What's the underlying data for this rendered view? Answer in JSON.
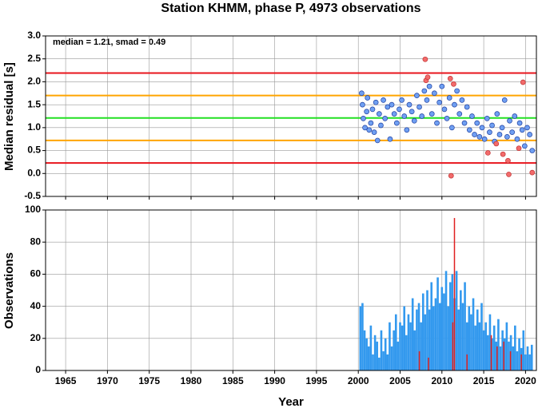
{
  "chart_data": [
    {
      "type": "scatter",
      "title": "Station KHMM, phase P, 4973 observations",
      "ylabel": "Median residual [s]",
      "annotation": "median = 1.21, smad = 0.49",
      "xlim": [
        1962.6,
        2021.3
      ],
      "xticks": [
        1965,
        1970,
        1975,
        1980,
        1985,
        1990,
        1995,
        2000,
        2005,
        2010,
        2015,
        2020
      ],
      "ylim": [
        -0.5,
        3.0
      ],
      "yticks": [
        {
          "value": -0.5,
          "label": "-0.5"
        },
        {
          "value": 0,
          "label": "0.0"
        },
        {
          "value": 0.5,
          "label": "0.5"
        },
        {
          "value": 1,
          "label": "1.0"
        },
        {
          "value": 1.5,
          "label": "1.5"
        },
        {
          "value": 2,
          "label": "2.0"
        },
        {
          "value": 2.5,
          "label": "2.5"
        },
        {
          "value": 3,
          "label": "3.0"
        }
      ],
      "grid": true,
      "lines": [
        {
          "value": 2.19,
          "color": "#e8141c"
        },
        {
          "value": 1.7,
          "color": "#ffa500"
        },
        {
          "value": 1.21,
          "color": "#22e022"
        },
        {
          "value": 0.72,
          "color": "#ffa500"
        },
        {
          "value": 0.23,
          "color": "#e8141c"
        }
      ],
      "series": [
        {
          "color": "#6f9ff2",
          "x": [
            2000.4,
            2000.5,
            2000.6,
            2000.8,
            2001.0,
            2001.1,
            2001.3,
            2001.5,
            2001.7,
            2001.9,
            2002.1,
            2002.3,
            2002.5,
            2002.7,
            2003.0,
            2003.2,
            2003.5,
            2003.8,
            2004.0,
            2004.3,
            2004.6,
            2004.9,
            2005.2,
            2005.5,
            2005.8,
            2006.1,
            2006.4,
            2006.7,
            2007.0,
            2007.3,
            2007.6,
            2007.9,
            2008.2,
            2008.5,
            2008.8,
            2009.1,
            2009.4,
            2009.7,
            2010.0,
            2010.3,
            2010.6,
            2010.9,
            2011.2,
            2011.5,
            2011.8,
            2012.1,
            2012.4,
            2012.7,
            2013.0,
            2013.3,
            2013.6,
            2013.9,
            2014.2,
            2014.5,
            2014.8,
            2015.1,
            2015.4,
            2015.7,
            2016.0,
            2016.3,
            2016.6,
            2016.9,
            2017.2,
            2017.5,
            2017.8,
            2018.1,
            2018.4,
            2018.7,
            2019.0,
            2019.3,
            2019.6,
            2019.9,
            2020.2,
            2020.5,
            2020.8
          ],
          "values": [
            1.75,
            1.5,
            1.2,
            1.0,
            1.35,
            1.65,
            0.95,
            1.1,
            1.4,
            0.9,
            1.55,
            0.72,
            1.3,
            1.05,
            1.6,
            1.2,
            1.45,
            0.75,
            1.5,
            1.3,
            1.1,
            1.4,
            1.6,
            1.25,
            0.95,
            1.5,
            1.35,
            1.15,
            1.7,
            1.45,
            1.25,
            1.8,
            1.6,
            1.9,
            1.3,
            1.75,
            1.1,
            1.55,
            1.9,
            1.4,
            1.2,
            1.65,
            1.0,
            1.5,
            1.8,
            1.3,
            1.6,
            1.1,
            1.45,
            0.95,
            1.25,
            0.85,
            1.1,
            0.8,
            1.0,
            0.75,
            1.2,
            0.9,
            1.05,
            0.7,
            1.3,
            0.85,
            1.0,
            1.6,
            0.8,
            1.15,
            0.9,
            1.25,
            0.75,
            1.1,
            0.95,
            0.6,
            1.0,
            0.85,
            0.5
          ]
        },
        {
          "color": "#f26b6b",
          "x": [
            2008.0,
            2008.1,
            2008.3,
            2011.0,
            2011.1,
            2011.4,
            2015.5,
            2016.5,
            2017.3,
            2017.9,
            2018.0,
            2019.2,
            2019.7,
            2020.8
          ],
          "values": [
            2.49,
            2.03,
            2.1,
            2.07,
            -0.05,
            1.95,
            0.45,
            0.65,
            0.42,
            0.28,
            -0.02,
            0.55,
            1.99,
            0.02
          ]
        }
      ]
    },
    {
      "type": "bar",
      "ylabel": "Observations",
      "xlabel": "Year",
      "xlim": [
        1962.6,
        2021.3
      ],
      "xticks": [
        1965,
        1970,
        1975,
        1980,
        1985,
        1990,
        1995,
        2000,
        2005,
        2010,
        2015,
        2020
      ],
      "ylim": [
        0,
        100
      ],
      "yticks": [
        0,
        20,
        40,
        60,
        80,
        100
      ],
      "grid": true,
      "series": [
        {
          "color": "#3399ee",
          "x": [
            2000.25,
            2000.5,
            2000.75,
            2001,
            2001.25,
            2001.5,
            2001.75,
            2002,
            2002.25,
            2002.5,
            2002.75,
            2003,
            2003.25,
            2003.5,
            2003.75,
            2004,
            2004.25,
            2004.5,
            2004.75,
            2005,
            2005.25,
            2005.5,
            2005.75,
            2006,
            2006.25,
            2006.5,
            2006.75,
            2007,
            2007.25,
            2007.5,
            2007.75,
            2008,
            2008.25,
            2008.5,
            2008.75,
            2009,
            2009.25,
            2009.5,
            2009.75,
            2010,
            2010.25,
            2010.5,
            2010.75,
            2011,
            2011.25,
            2011.5,
            2011.75,
            2012,
            2012.25,
            2012.5,
            2012.75,
            2013,
            2013.25,
            2013.5,
            2013.75,
            2014,
            2014.25,
            2014.5,
            2014.75,
            2015,
            2015.25,
            2015.5,
            2015.75,
            2016,
            2016.25,
            2016.5,
            2016.75,
            2017,
            2017.25,
            2017.5,
            2017.75,
            2018,
            2018.25,
            2018.5,
            2018.75,
            2019,
            2019.25,
            2019.5,
            2019.75,
            2020,
            2020.25,
            2020.5,
            2020.75
          ],
          "values": [
            40,
            42,
            25,
            20,
            15,
            28,
            10,
            22,
            18,
            8,
            25,
            12,
            20,
            10,
            30,
            15,
            25,
            35,
            18,
            30,
            28,
            40,
            22,
            35,
            30,
            45,
            25,
            38,
            42,
            30,
            48,
            35,
            50,
            38,
            55,
            40,
            45,
            58,
            42,
            52,
            48,
            62,
            40,
            55,
            60,
            45,
            62,
            38,
            50,
            42,
            55,
            30,
            40,
            35,
            45,
            28,
            38,
            30,
            42,
            25,
            30,
            22,
            35,
            20,
            28,
            18,
            32,
            15,
            25,
            20,
            30,
            18,
            22,
            15,
            28,
            12,
            20,
            14,
            25,
            10,
            15,
            10,
            16
          ]
        },
        {
          "color": "#e02020",
          "x": [
            2007.3,
            2008.4,
            2011.3,
            2011.5,
            2013.0,
            2015.9,
            2016.6,
            2017.4,
            2018.2,
            2019.5
          ],
          "values": [
            12,
            8,
            30,
            95,
            10,
            22,
            15,
            18,
            12,
            10
          ]
        }
      ]
    }
  ]
}
